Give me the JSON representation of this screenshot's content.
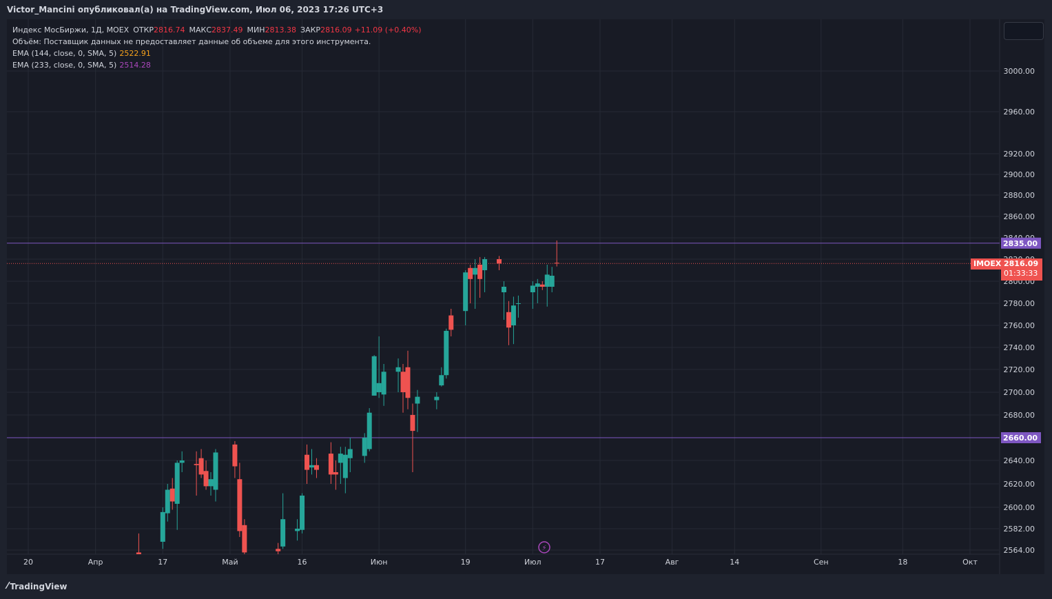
{
  "header": {
    "title": "Victor_Mancini опубликовал(а) на TradingView.com, Июл 06, 2023 17:26 UTC+3"
  },
  "legend": {
    "symbol": "Индекс МосБиржи, 1Д, MOEX",
    "open_label": "ОТКР",
    "open_value": "2816.74",
    "high_label": "МАКС",
    "high_value": "2837.49",
    "low_label": "МИН",
    "low_value": "2813.38",
    "close_label": "ЗАКР",
    "close_value": "2816.09",
    "change": "+11.09 (+0.40%)",
    "volume_note": "Объём: Поставщик данных не предоставляет данные об объеме для этого инструмента.",
    "ema1_label": "EMA (144, close, 0, SMA, 5)",
    "ema1_value": "2522.91",
    "ema2_label": "EMA (233, close, 0, SMA, 5)",
    "ema2_value": "2514.28"
  },
  "price_tag": {
    "symbol": "IMOEX",
    "price": "2816.09",
    "countdown": "01:33:33"
  },
  "footer": {
    "brand": "TradingView"
  },
  "colors": {
    "up": "#26a69a",
    "down": "#ef5350",
    "level": "#7e57c2",
    "background": "#181b25"
  },
  "chart_data": {
    "type": "candlestick",
    "y_ticks": [
      3000,
      2960,
      2920,
      2900,
      2880,
      2860,
      2840,
      2820,
      2800,
      2780,
      2760,
      2740,
      2720,
      2700,
      2680,
      2660,
      2640,
      2620,
      2600,
      2582,
      2564
    ],
    "y_tick_labels": [
      "3000.00",
      "2960.00",
      "2920.00",
      "2900.00",
      "2880.00",
      "2860.00",
      "2840.00",
      "2820.00",
      "2800.00",
      "2780.00",
      "2760.00",
      "2740.00",
      "2720.00",
      "2700.00",
      "2680.00",
      "2660.00",
      "2640.00",
      "2620.00",
      "2600.00",
      "2582.00",
      "2564.00"
    ],
    "x_labels": [
      {
        "date": "2023-03-20",
        "label": "20"
      },
      {
        "date": "2023-04-03",
        "label": "Апр"
      },
      {
        "date": "2023-04-17",
        "label": "17"
      },
      {
        "date": "2023-05-01",
        "label": "Май"
      },
      {
        "date": "2023-05-16",
        "label": "16"
      },
      {
        "date": "2023-06-01",
        "label": "Июн"
      },
      {
        "date": "2023-06-19",
        "label": "19"
      },
      {
        "date": "2023-07-03",
        "label": "Июл"
      },
      {
        "date": "2023-07-17",
        "label": "17"
      },
      {
        "date": "2023-08-01",
        "label": "Авг"
      },
      {
        "date": "2023-08-14",
        "label": "14"
      },
      {
        "date": "2023-09-01",
        "label": "Сен"
      },
      {
        "date": "2023-09-18",
        "label": "18"
      },
      {
        "date": "2023-10-02",
        "label": "Окт"
      }
    ],
    "levels": [
      {
        "value": 2835.0,
        "label": "2835.00"
      },
      {
        "value": 2660.0,
        "label": "2660.00"
      }
    ],
    "last_price": 2816.09,
    "candles": [
      {
        "date": "2023-04-12",
        "o": 2562,
        "h": 2578,
        "l": 2550,
        "c": 2555
      },
      {
        "date": "2023-04-17",
        "o": 2571,
        "h": 2600,
        "l": 2565,
        "c": 2596
      },
      {
        "date": "2023-04-18",
        "o": 2595,
        "h": 2620,
        "l": 2588,
        "c": 2615
      },
      {
        "date": "2023-04-19",
        "o": 2616,
        "h": 2625,
        "l": 2598,
        "c": 2605
      },
      {
        "date": "2023-04-20",
        "o": 2603,
        "h": 2640,
        "l": 2581,
        "c": 2638
      },
      {
        "date": "2023-04-21",
        "o": 2638,
        "h": 2648,
        "l": 2630,
        "c": 2640
      },
      {
        "date": "2023-04-24",
        "o": 2637,
        "h": 2648,
        "l": 2610,
        "c": 2636
      },
      {
        "date": "2023-04-25",
        "o": 2642,
        "h": 2650,
        "l": 2625,
        "c": 2628
      },
      {
        "date": "2023-04-26",
        "o": 2631,
        "h": 2640,
        "l": 2615,
        "c": 2618
      },
      {
        "date": "2023-04-27",
        "o": 2618,
        "h": 2630,
        "l": 2610,
        "c": 2624
      },
      {
        "date": "2023-04-28",
        "o": 2615,
        "h": 2650,
        "l": 2605,
        "c": 2647
      },
      {
        "date": "2023-05-02",
        "o": 2654,
        "h": 2657,
        "l": 2625,
        "c": 2635
      },
      {
        "date": "2023-05-03",
        "o": 2624,
        "h": 2638,
        "l": 2575,
        "c": 2580
      },
      {
        "date": "2023-05-04",
        "o": 2585,
        "h": 2590,
        "l": 2560,
        "c": 2562
      },
      {
        "date": "2023-05-11",
        "o": 2565,
        "h": 2570,
        "l": 2560,
        "c": 2563
      },
      {
        "date": "2023-05-12",
        "o": 2567,
        "h": 2612,
        "l": 2565,
        "c": 2590
      },
      {
        "date": "2023-05-15",
        "o": 2580,
        "h": 2590,
        "l": 2572,
        "c": 2582
      },
      {
        "date": "2023-05-16",
        "o": 2581,
        "h": 2612,
        "l": 2578,
        "c": 2610
      },
      {
        "date": "2023-05-17",
        "o": 2645,
        "h": 2654,
        "l": 2620,
        "c": 2632
      },
      {
        "date": "2023-05-18",
        "o": 2634,
        "h": 2650,
        "l": 2628,
        "c": 2636
      },
      {
        "date": "2023-05-19",
        "o": 2636,
        "h": 2642,
        "l": 2625,
        "c": 2632
      },
      {
        "date": "2023-05-22",
        "o": 2646,
        "h": 2656,
        "l": 2620,
        "c": 2628
      },
      {
        "date": "2023-05-23",
        "o": 2630,
        "h": 2640,
        "l": 2615,
        "c": 2628
      },
      {
        "date": "2023-05-24",
        "o": 2638,
        "h": 2652,
        "l": 2620,
        "c": 2646
      },
      {
        "date": "2023-05-25",
        "o": 2625,
        "h": 2652,
        "l": 2612,
        "c": 2645
      },
      {
        "date": "2023-05-26",
        "o": 2642,
        "h": 2660,
        "l": 2630,
        "c": 2650
      },
      {
        "date": "2023-05-29",
        "o": 2644,
        "h": 2664,
        "l": 2638,
        "c": 2660
      },
      {
        "date": "2023-05-30",
        "o": 2650,
        "h": 2686,
        "l": 2648,
        "c": 2682
      },
      {
        "date": "2023-05-31",
        "o": 2697,
        "h": 2733,
        "l": 2697,
        "c": 2732
      },
      {
        "date": "2023-06-01",
        "o": 2700,
        "h": 2750,
        "l": 2695,
        "c": 2708
      },
      {
        "date": "2023-06-02",
        "o": 2698,
        "h": 2725,
        "l": 2688,
        "c": 2718
      },
      {
        "date": "2023-06-05",
        "o": 2718,
        "h": 2730,
        "l": 2700,
        "c": 2722
      },
      {
        "date": "2023-06-06",
        "o": 2718,
        "h": 2725,
        "l": 2682,
        "c": 2700
      },
      {
        "date": "2023-06-07",
        "o": 2722,
        "h": 2737,
        "l": 2685,
        "c": 2695
      },
      {
        "date": "2023-06-08",
        "o": 2680,
        "h": 2690,
        "l": 2630,
        "c": 2666
      },
      {
        "date": "2023-06-09",
        "o": 2690,
        "h": 2702,
        "l": 2665,
        "c": 2696
      },
      {
        "date": "2023-06-13",
        "o": 2693,
        "h": 2700,
        "l": 2685,
        "c": 2696
      },
      {
        "date": "2023-06-14",
        "o": 2706,
        "h": 2722,
        "l": 2705,
        "c": 2715
      },
      {
        "date": "2023-06-15",
        "o": 2715,
        "h": 2757,
        "l": 2712,
        "c": 2755
      },
      {
        "date": "2023-06-16",
        "o": 2769,
        "h": 2775,
        "l": 2750,
        "c": 2756
      },
      {
        "date": "2023-06-19",
        "o": 2773,
        "h": 2810,
        "l": 2760,
        "c": 2808
      },
      {
        "date": "2023-06-20",
        "o": 2812,
        "h": 2815,
        "l": 2780,
        "c": 2802
      },
      {
        "date": "2023-06-21",
        "o": 2806,
        "h": 2820,
        "l": 2775,
        "c": 2812
      },
      {
        "date": "2023-06-22",
        "o": 2815,
        "h": 2822,
        "l": 2785,
        "c": 2802
      },
      {
        "date": "2023-06-23",
        "o": 2810,
        "h": 2822,
        "l": 2790,
        "c": 2820
      },
      {
        "date": "2023-06-26",
        "o": 2820,
        "h": 2823,
        "l": 2810,
        "c": 2816
      },
      {
        "date": "2023-06-27",
        "o": 2790,
        "h": 2800,
        "l": 2765,
        "c": 2795
      },
      {
        "date": "2023-06-28",
        "o": 2772,
        "h": 2782,
        "l": 2742,
        "c": 2758
      },
      {
        "date": "2023-06-29",
        "o": 2760,
        "h": 2786,
        "l": 2743,
        "c": 2778
      },
      {
        "date": "2023-06-30",
        "o": 2780,
        "h": 2787,
        "l": 2767,
        "c": 2780
      },
      {
        "date": "2023-07-03",
        "o": 2790,
        "h": 2800,
        "l": 2775,
        "c": 2796
      },
      {
        "date": "2023-07-04",
        "o": 2795,
        "h": 2802,
        "l": 2780,
        "c": 2798
      },
      {
        "date": "2023-07-05",
        "o": 2797,
        "h": 2800,
        "l": 2792,
        "c": 2795
      },
      {
        "date": "2023-07-06",
        "o": 2795,
        "h": 2815,
        "l": 2777,
        "c": 2806
      },
      {
        "date": "2023-07-07",
        "o": 2795,
        "h": 2813,
        "l": 2790,
        "c": 2805
      },
      {
        "date": "2023-07-08",
        "o": 2816.74,
        "h": 2837.49,
        "l": 2813.38,
        "c": 2816.09
      }
    ]
  }
}
